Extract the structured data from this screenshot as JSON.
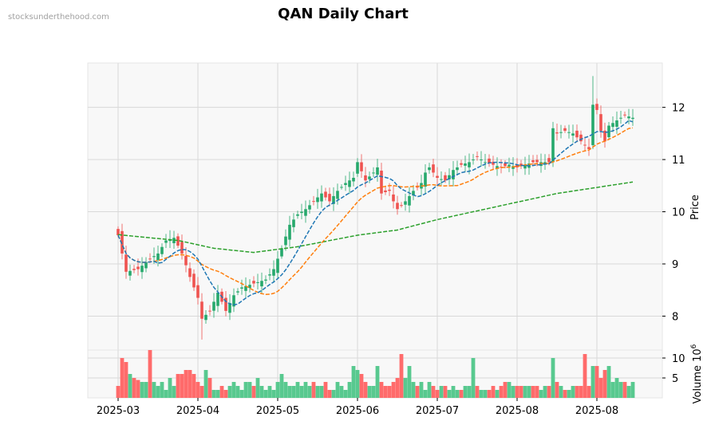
{
  "page": {
    "watermark": "stocksunderthehood.com",
    "title": "QAN Daily Chart"
  },
  "chart_data": {
    "type": "candlestick",
    "title": "QAN Daily Chart",
    "price_axis": {
      "label": "Price",
      "ticks": [
        8,
        9,
        10,
        11,
        12
      ],
      "ylim": [
        7.35,
        12.85
      ]
    },
    "volume_axis": {
      "label": "Volume",
      "exponent_label": "10",
      "exponent": "6",
      "ticks": [
        5,
        10
      ],
      "ylim": [
        0,
        12
      ]
    },
    "x_tick_labels": [
      "2025-03",
      "2025-04",
      "2025-05",
      "2025-06",
      "2025-07",
      "2025-08",
      "2025-08"
    ],
    "x_tick_index": [
      0,
      20,
      40,
      60,
      80,
      100,
      120
    ],
    "num_days": 130,
    "colors": {
      "up": "#26a96c",
      "down": "#ef5350",
      "ma_short": "#1f77b4",
      "ma_mid": "#ff7f0e",
      "ma_long": "#2ca02c",
      "panel_bg": "#f8f8f8",
      "grid": "#d9d9d9"
    },
    "price_anchors": [
      [
        0,
        9.55
      ],
      [
        2,
        8.85
      ],
      [
        5,
        8.9
      ],
      [
        8,
        9.1
      ],
      [
        10,
        9.2
      ],
      [
        12,
        9.45
      ],
      [
        14,
        9.5
      ],
      [
        16,
        9.2
      ],
      [
        18,
        8.75
      ],
      [
        20,
        8.35
      ],
      [
        21,
        7.95
      ],
      [
        23,
        8.1
      ],
      [
        25,
        8.45
      ],
      [
        27,
        8.1
      ],
      [
        29,
        8.4
      ],
      [
        31,
        8.55
      ],
      [
        35,
        8.65
      ],
      [
        37,
        8.7
      ],
      [
        39,
        8.9
      ],
      [
        41,
        9.3
      ],
      [
        43,
        9.75
      ],
      [
        45,
        9.95
      ],
      [
        47,
        10.05
      ],
      [
        49,
        10.2
      ],
      [
        51,
        10.35
      ],
      [
        53,
        10.2
      ],
      [
        55,
        10.4
      ],
      [
        57,
        10.55
      ],
      [
        59,
        10.65
      ],
      [
        60,
        10.95
      ],
      [
        62,
        10.6
      ],
      [
        64,
        10.75
      ],
      [
        65,
        10.85
      ],
      [
        66,
        10.35
      ],
      [
        68,
        10.4
      ],
      [
        69,
        10.2
      ],
      [
        70,
        10.05
      ],
      [
        72,
        10.2
      ],
      [
        74,
        10.4
      ],
      [
        76,
        10.55
      ],
      [
        77,
        10.75
      ],
      [
        78,
        10.85
      ],
      [
        80,
        10.65
      ],
      [
        82,
        10.6
      ],
      [
        84,
        10.8
      ],
      [
        86,
        10.9
      ],
      [
        88,
        10.95
      ],
      [
        90,
        11.05
      ],
      [
        92,
        10.95
      ],
      [
        94,
        10.9
      ],
      [
        96,
        10.85
      ],
      [
        98,
        10.9
      ],
      [
        100,
        10.85
      ],
      [
        104,
        10.95
      ],
      [
        108,
        10.95
      ],
      [
        109,
        11.6
      ],
      [
        110,
        11.5
      ],
      [
        112,
        11.55
      ],
      [
        114,
        11.5
      ],
      [
        116,
        11.35
      ],
      [
        118,
        11.2
      ],
      [
        119,
        12.05
      ],
      [
        120,
        11.95
      ],
      [
        121,
        11.55
      ],
      [
        122,
        11.35
      ],
      [
        123,
        11.65
      ],
      [
        125,
        11.75
      ],
      [
        127,
        11.85
      ],
      [
        129,
        11.8
      ]
    ],
    "ma_long_anchors": [
      [
        0,
        9.56
      ],
      [
        15,
        9.45
      ],
      [
        24,
        9.3
      ],
      [
        34,
        9.22
      ],
      [
        45,
        9.33
      ],
      [
        60,
        9.55
      ],
      [
        70,
        9.65
      ],
      [
        80,
        9.85
      ],
      [
        95,
        10.1
      ],
      [
        110,
        10.35
      ],
      [
        129,
        10.57
      ]
    ],
    "volume_anchors": [
      [
        0,
        3
      ],
      [
        1,
        10
      ],
      [
        2,
        9
      ],
      [
        3,
        6
      ],
      [
        4,
        5
      ],
      [
        5,
        4.5
      ],
      [
        6,
        4
      ],
      [
        7,
        4
      ],
      [
        8,
        12
      ],
      [
        9,
        4
      ],
      [
        10,
        3
      ],
      [
        11,
        4
      ],
      [
        12,
        2
      ],
      [
        13,
        5
      ],
      [
        14,
        3
      ],
      [
        15,
        6
      ],
      [
        16,
        6
      ],
      [
        17,
        7
      ],
      [
        18,
        7
      ],
      [
        19,
        6
      ],
      [
        20,
        4
      ],
      [
        21,
        3
      ],
      [
        22,
        7
      ],
      [
        23,
        5
      ],
      [
        24,
        2
      ],
      [
        25,
        2
      ],
      [
        26,
        3
      ],
      [
        27,
        2
      ],
      [
        28,
        3
      ],
      [
        29,
        4
      ],
      [
        30,
        3
      ],
      [
        31,
        2
      ],
      [
        32,
        4
      ],
      [
        33,
        4
      ],
      [
        34,
        3
      ],
      [
        35,
        5
      ],
      [
        36,
        3
      ],
      [
        37,
        2
      ],
      [
        38,
        3
      ],
      [
        39,
        2
      ],
      [
        40,
        4
      ],
      [
        41,
        6
      ],
      [
        42,
        4
      ],
      [
        43,
        3
      ],
      [
        44,
        3
      ],
      [
        45,
        4
      ],
      [
        46,
        3
      ],
      [
        47,
        4
      ],
      [
        48,
        3
      ],
      [
        49,
        4
      ],
      [
        50,
        3
      ],
      [
        51,
        3
      ],
      [
        52,
        4
      ],
      [
        53,
        2
      ],
      [
        54,
        2
      ],
      [
        55,
        4
      ],
      [
        56,
        3
      ],
      [
        57,
        2
      ],
      [
        58,
        4
      ],
      [
        59,
        8
      ],
      [
        60,
        7
      ],
      [
        61,
        6
      ],
      [
        62,
        4
      ],
      [
        63,
        3
      ],
      [
        64,
        3
      ],
      [
        65,
        8
      ],
      [
        66,
        4
      ],
      [
        67,
        3
      ],
      [
        68,
        3
      ],
      [
        69,
        4
      ],
      [
        70,
        5
      ],
      [
        71,
        11
      ],
      [
        72,
        5
      ],
      [
        73,
        8
      ],
      [
        74,
        4
      ],
      [
        75,
        3
      ],
      [
        76,
        4
      ],
      [
        77,
        2
      ],
      [
        78,
        4
      ],
      [
        79,
        3
      ],
      [
        80,
        2
      ],
      [
        81,
        3
      ],
      [
        82,
        3
      ],
      [
        83,
        2
      ],
      [
        84,
        3
      ],
      [
        85,
        2
      ],
      [
        86,
        2
      ],
      [
        87,
        3
      ],
      [
        88,
        3
      ],
      [
        89,
        10
      ],
      [
        90,
        3
      ],
      [
        91,
        2
      ],
      [
        92,
        2
      ],
      [
        93,
        2
      ],
      [
        94,
        3
      ],
      [
        95,
        2
      ],
      [
        96,
        3
      ],
      [
        97,
        4
      ],
      [
        98,
        4
      ],
      [
        99,
        3
      ],
      [
        100,
        3
      ],
      [
        101,
        3
      ],
      [
        102,
        3
      ],
      [
        103,
        3
      ],
      [
        104,
        3
      ],
      [
        105,
        3
      ],
      [
        106,
        2
      ],
      [
        107,
        3
      ],
      [
        108,
        3
      ],
      [
        109,
        10
      ],
      [
        110,
        4
      ],
      [
        111,
        3
      ],
      [
        112,
        2
      ],
      [
        113,
        2
      ],
      [
        114,
        3
      ],
      [
        115,
        3
      ],
      [
        116,
        3
      ],
      [
        117,
        11
      ],
      [
        118,
        3
      ],
      [
        119,
        8
      ],
      [
        120,
        8
      ],
      [
        121,
        5
      ],
      [
        122,
        7
      ],
      [
        123,
        8
      ],
      [
        124,
        4
      ],
      [
        125,
        5
      ],
      [
        126,
        4
      ],
      [
        127,
        4
      ],
      [
        128,
        3
      ],
      [
        129,
        4
      ]
    ]
  }
}
